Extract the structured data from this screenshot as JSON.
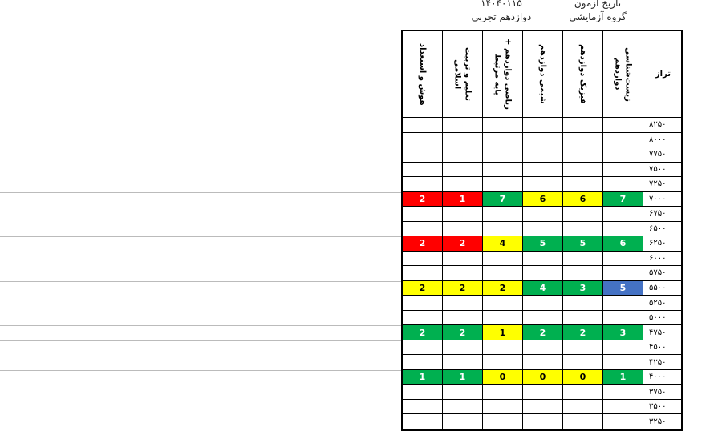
{
  "header": {
    "exam_date_label": "تاریخ آزمون",
    "exam_date": "۱۴۰۴۰۱۱۵",
    "group_label": "گروه آزمایشی",
    "group": "دوازدهم تجربی"
  },
  "table": {
    "columns": [
      "هوش و استعداد",
      "تعلیم و تربیت اسلامی",
      "ریاضی دوازدهم + پایه مرتبط",
      "شیمی دوازدهم",
      "فیزیک دوازدهم",
      "زیست‌شناسی دوازدهم",
      "تراز"
    ],
    "rows": [
      {
        "level": "۸۲۵۰"
      },
      {
        "level": "۸۰۰۰"
      },
      {
        "level": "۷۷۵۰"
      },
      {
        "level": "۷۵۰۰"
      },
      {
        "level": "۷۲۵۰"
      },
      {
        "level": "۷۰۰۰",
        "scores": [
          {
            "value": 2,
            "color": "#ff0000"
          },
          {
            "value": 1,
            "color": "#ff0000"
          },
          {
            "value": 7,
            "color": "#00b050"
          },
          {
            "value": 6,
            "color": "#ffff00"
          },
          {
            "value": 6,
            "color": "#ffff00"
          },
          {
            "value": 7,
            "color": "#00b050"
          }
        ]
      },
      {
        "level": "۶۷۵۰"
      },
      {
        "level": "۶۵۰۰"
      },
      {
        "level": "۶۲۵۰",
        "scores": [
          {
            "value": 2,
            "color": "#ff0000"
          },
          {
            "value": 2,
            "color": "#ff0000"
          },
          {
            "value": 4,
            "color": "#ffff00"
          },
          {
            "value": 5,
            "color": "#00b050"
          },
          {
            "value": 5,
            "color": "#00b050"
          },
          {
            "value": 6,
            "color": "#00b050"
          }
        ]
      },
      {
        "level": "۶۰۰۰"
      },
      {
        "level": "۵۷۵۰"
      },
      {
        "level": "۵۵۰۰",
        "scores": [
          {
            "value": 2,
            "color": "#ffff00"
          },
          {
            "value": 2,
            "color": "#ffff00"
          },
          {
            "value": 2,
            "color": "#ffff00"
          },
          {
            "value": 4,
            "color": "#00b050"
          },
          {
            "value": 3,
            "color": "#00b050"
          },
          {
            "value": 5,
            "color": "#4472c4"
          }
        ]
      },
      {
        "level": "۵۲۵۰"
      },
      {
        "level": "۵۰۰۰"
      },
      {
        "level": "۴۷۵۰",
        "scores": [
          {
            "value": 2,
            "color": "#00b050"
          },
          {
            "value": 2,
            "color": "#00b050"
          },
          {
            "value": 1,
            "color": "#ffff00"
          },
          {
            "value": 2,
            "color": "#00b050"
          },
          {
            "value": 2,
            "color": "#00b050"
          },
          {
            "value": 3,
            "color": "#00b050"
          }
        ]
      },
      {
        "level": "۴۵۰۰"
      },
      {
        "level": "۴۲۵۰"
      },
      {
        "level": "۴۰۰۰",
        "scores": [
          {
            "value": 1,
            "color": "#00b050"
          },
          {
            "value": 1,
            "color": "#00b050"
          },
          {
            "value": 0,
            "color": "#ffff00"
          },
          {
            "value": 0,
            "color": "#ffff00"
          },
          {
            "value": 0,
            "color": "#ffff00"
          },
          {
            "value": 1,
            "color": "#00b050"
          }
        ]
      },
      {
        "level": "۳۷۵۰"
      },
      {
        "level": "۳۵۰۰"
      },
      {
        "level": "۳۲۵۰"
      }
    ]
  }
}
